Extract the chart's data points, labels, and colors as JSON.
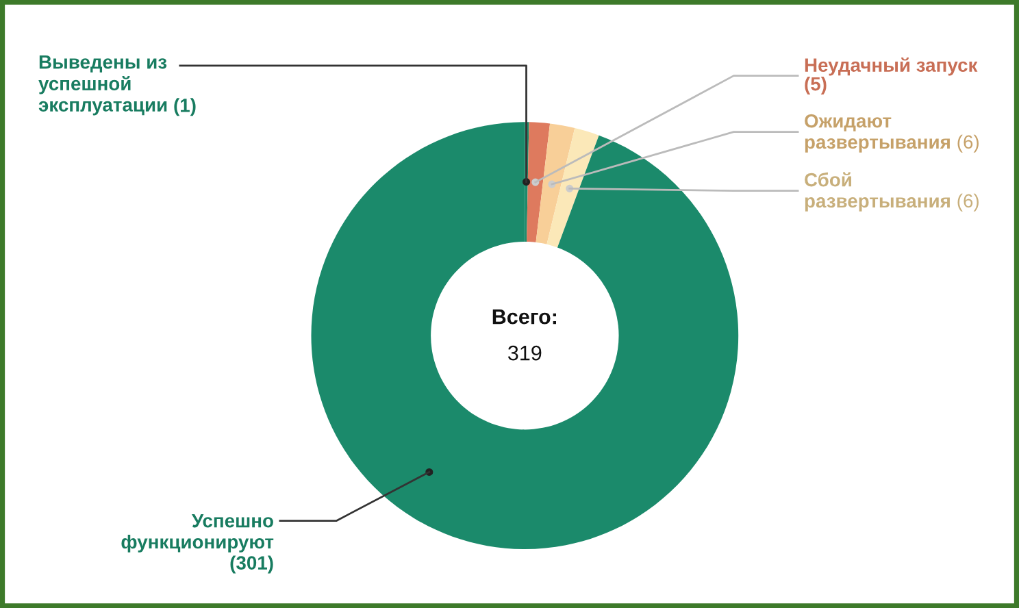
{
  "chart_data": {
    "type": "donut",
    "categories": [
      "Выведены из\nуспешной\nэксплуатации",
      "Неудачный запуск",
      "Ожидают\nразвертывания",
      "Сбой\nразвертывания",
      "Успешно\nфункционируют"
    ],
    "values": [
      1,
      5,
      6,
      6,
      301
    ],
    "colors": [
      "#1b8a6b",
      "#de7a5e",
      "#f8cf98",
      "#fbe8b8",
      "#1b8a6b"
    ],
    "value_labels": [
      "(1)",
      "(5)",
      "(6)",
      "(6)",
      "(301)"
    ],
    "annotations": [
      "Всего:",
      "319"
    ]
  }
}
